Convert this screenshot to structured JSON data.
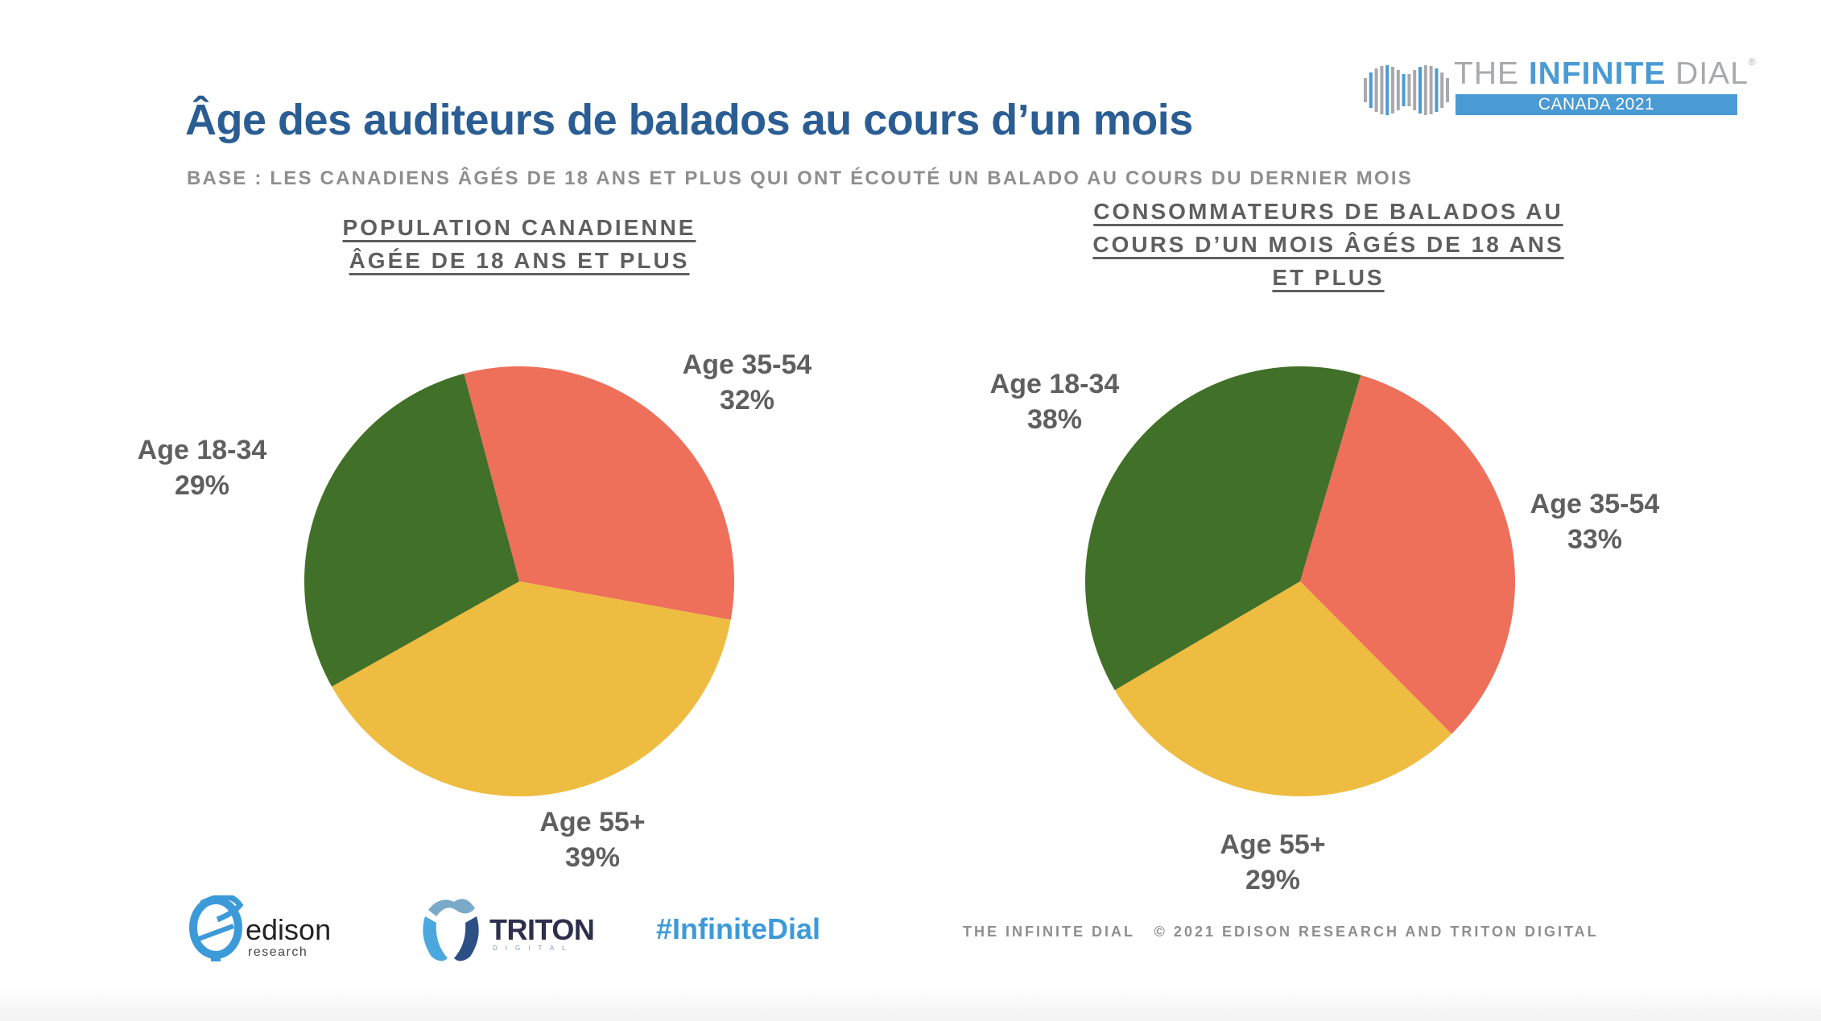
{
  "header": {
    "title": "Âge des auditeurs de balados au cours d’un mois",
    "base_note": "BASE : LES CANADIENS ÂGÉS DE 18 ANS ET PLUS QUI ONT ÉCOUTÉ UN BALADO AU COURS DU DERNIER MOIS"
  },
  "logo": {
    "title_prefix": "THE ",
    "title_bold": "INFINITE",
    "title_suffix": " DIAL",
    "registered": "®",
    "band": "CANADA 2021",
    "icon": "infinity-dial-icon"
  },
  "colors": {
    "title": "#2a5d93",
    "age_18_34": "#417028",
    "age_35_54": "#ee6f5a",
    "age_55_plus": "#eebc40",
    "label": "#5f5f5f",
    "accent": "#4a9ad4"
  },
  "chart_data": [
    {
      "type": "pie",
      "title_lines": [
        "POPULATION CANADIENNE",
        "ÂGÉE DE 18 ANS ET PLUS"
      ],
      "categories": [
        "Age 18-34",
        "Age 35-54",
        "Age 55+"
      ],
      "values": [
        29,
        32,
        39
      ],
      "value_labels": [
        "29%",
        "32%",
        "39%"
      ],
      "unit": "%",
      "start_category": "Age 35-54",
      "start_angle_deg": -14.9,
      "direction": "clockwise",
      "label_placement": "outside"
    },
    {
      "type": "pie",
      "title_lines": [
        "CONSOMMATEURS DE BALADOS AU",
        "COURS D’UN MOIS ÂGÉS DE 18 ANS",
        "ET PLUS"
      ],
      "categories": [
        "Age 18-34",
        "Age 35-54",
        "Age 55+"
      ],
      "values": [
        38,
        33,
        29
      ],
      "value_labels": [
        "38%",
        "33%",
        "29%"
      ],
      "unit": "%",
      "start_category": "Age 35-54",
      "start_angle_deg": 16.4,
      "direction": "clockwise",
      "label_placement": "outside"
    }
  ],
  "footer": {
    "edison_name": "edison",
    "edison_sub": "research",
    "triton_name": "TRITON",
    "triton_sub": "DIGITAL",
    "hashtag": "#InfiniteDial",
    "credit": "THE INFINITE DIAL   © 2021 EDISON RESEARCH AND TRITON DIGITAL"
  }
}
